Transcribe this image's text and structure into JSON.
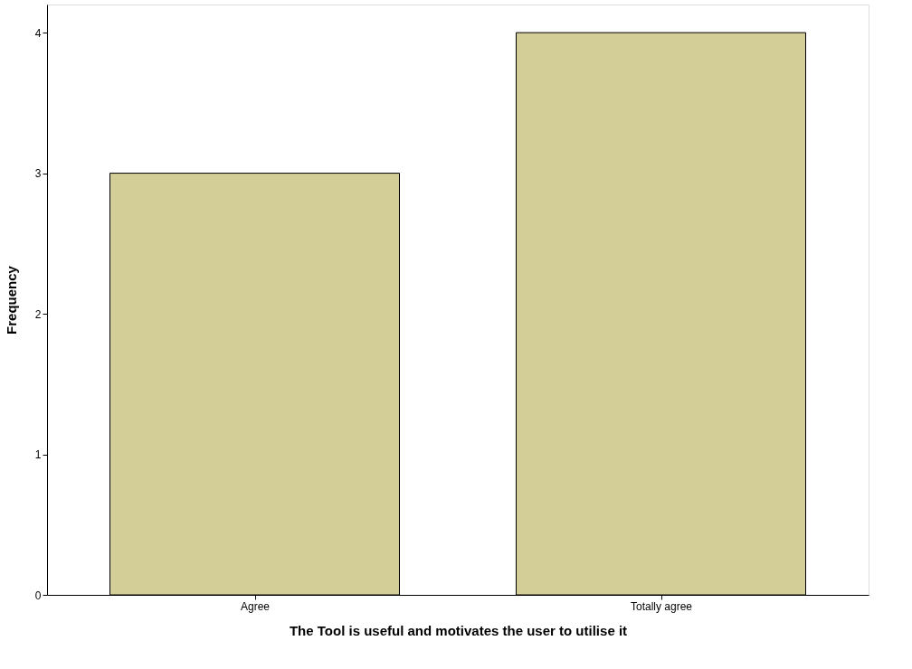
{
  "chart_data": {
    "type": "bar",
    "xlabel": "The Tool is useful and motivates the user to utilise it",
    "ylabel": "Frequency",
    "categories": [
      "Agree",
      "Totally agree"
    ],
    "series": [
      {
        "color": "#d3ce97",
        "values": [
          3,
          4
        ]
      }
    ],
    "ylim": [
      0,
      4.2
    ],
    "yticks": [
      0,
      1,
      2,
      3,
      4
    ],
    "grid": false,
    "legend": false
  }
}
